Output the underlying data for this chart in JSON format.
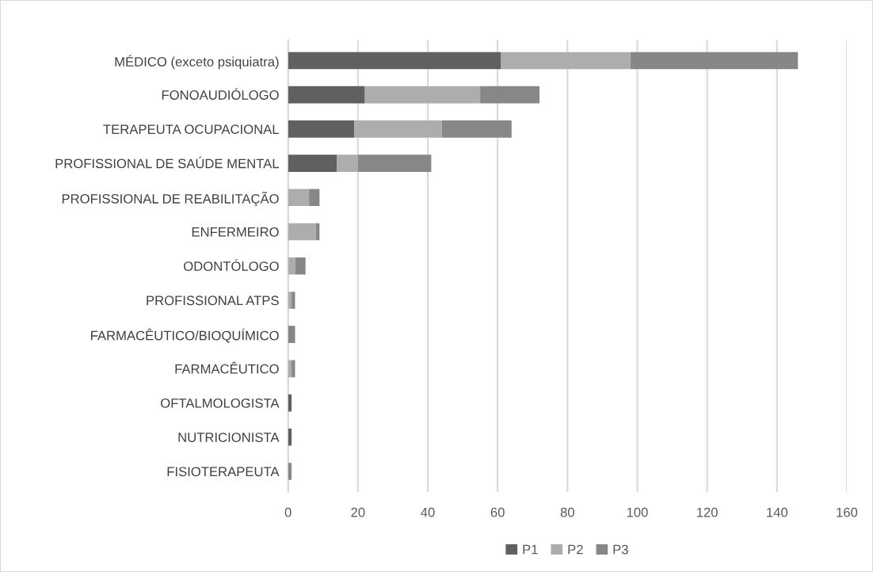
{
  "chart_data": {
    "type": "bar",
    "orientation": "horizontal",
    "stacked": true,
    "categories": [
      "MÉDICO (exceto psiquiatra)",
      "FONOAUDIÓLOGO",
      "TERAPEUTA OCUPACIONAL",
      "PROFISSIONAL DE SAÚDE MENTAL",
      "PROFISSIONAL DE REABILITAÇÃO",
      "ENFERMEIRO",
      "ODONTÓLOGO",
      "PROFISSIONAL ATPS",
      "FARMACÊUTICO/BIOQUÍMICO",
      "FARMACÊUTICO",
      "OFTALMOLOGISTA",
      "NUTRICIONISTA",
      "FISIOTERAPEUTA"
    ],
    "series": [
      {
        "name": "P1",
        "color": "#606060",
        "values": [
          61,
          22,
          19,
          14,
          0,
          0,
          0,
          0,
          0,
          0,
          1,
          1,
          0
        ]
      },
      {
        "name": "P2",
        "color": "#adadad",
        "values": [
          37,
          33,
          25,
          6,
          6,
          8,
          2,
          1,
          0,
          1,
          0,
          0,
          0
        ]
      },
      {
        "name": "P3",
        "color": "#878787",
        "values": [
          48,
          17,
          20,
          21,
          3,
          1,
          3,
          1,
          2,
          1,
          0,
          0,
          1
        ]
      }
    ],
    "xlim": [
      0,
      160
    ],
    "xticks": [
      0,
      20,
      40,
      60,
      80,
      100,
      120,
      140,
      160
    ],
    "grid": "x",
    "legend": "bottom"
  }
}
